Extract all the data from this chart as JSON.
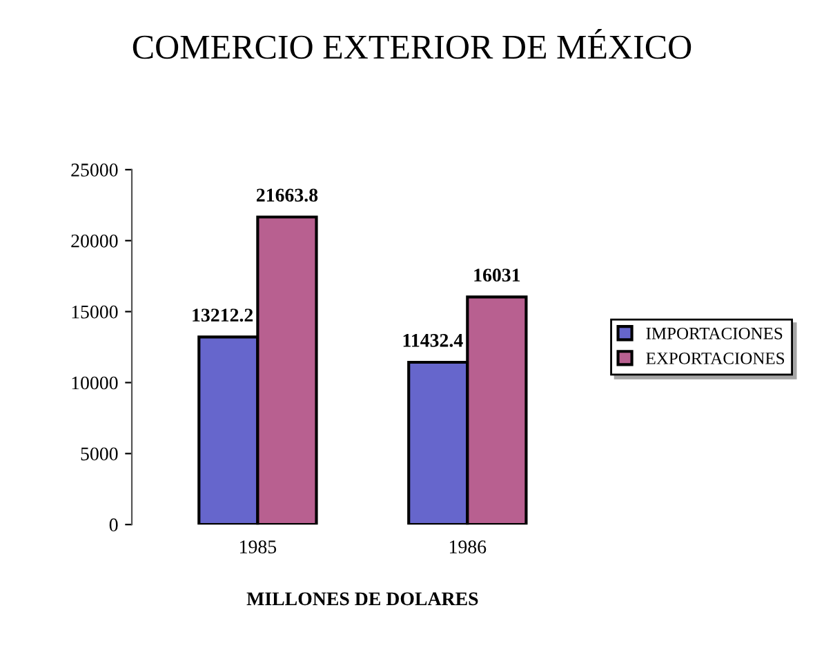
{
  "chart_data": {
    "type": "bar",
    "title": "COMERCIO EXTERIOR DE MÉXICO",
    "xlabel": "MILLONES DE DOLARES",
    "categories": [
      "1985",
      "1986"
    ],
    "series": [
      {
        "name": "IMPORTACIONES",
        "color": "#6666cc",
        "values": [
          13212.2,
          11432.4
        ]
      },
      {
        "name": "EXPORTACIONES",
        "color": "#b86090",
        "values": [
          21663.8,
          16031
        ]
      }
    ],
    "data_labels": true,
    "ylim": [
      0,
      25000
    ],
    "yticks": [
      0,
      5000,
      10000,
      15000,
      20000,
      25000
    ],
    "grid": false,
    "legend": "right"
  }
}
